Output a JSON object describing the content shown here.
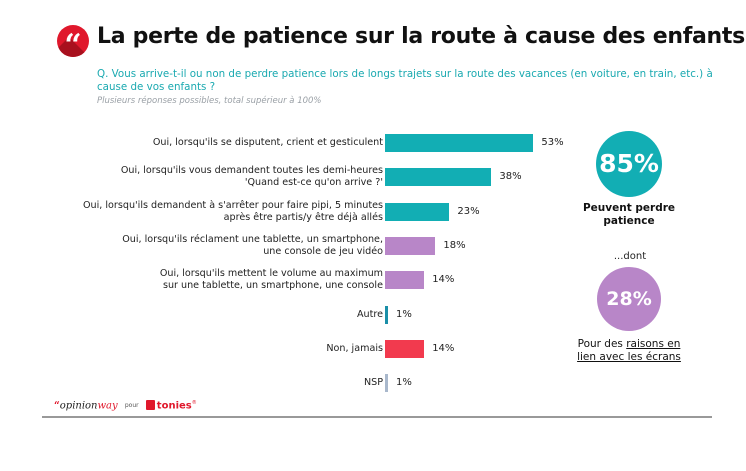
{
  "header": {
    "icon": "quote-icon",
    "quote_glyph": "“",
    "title": "La perte de patience sur la route à cause des enfants",
    "question": "Q. Vous arrive-t-il ou non de perdre patience lors de longs trajets sur la route des vacances (en voiture, en train, etc.) à cause de vos enfants ?",
    "note": "Plusieurs réponses possibles, total supérieur à 100%"
  },
  "chart_data": {
    "type": "bar",
    "orientation": "horizontal",
    "title": "La perte de patience sur la route à cause des enfants",
    "xlabel": "",
    "ylabel": "",
    "xlim": [
      0,
      100
    ],
    "grid": false,
    "unit": "%",
    "categories": [
      [
        "Oui, lorsqu'ils se disputent, crient et gesticulent"
      ],
      [
        "Oui, lorsqu'ils vous demandent toutes les demi-heures",
        "'Quand est-ce qu'on arrive ?'"
      ],
      [
        "Oui, lorsqu'ils demandent à s'arrêter pour faire pipi, 5 minutes",
        "après être partis/y être déjà allés"
      ],
      [
        "Oui, lorsqu'ils réclament une tablette, un smartphone,",
        "une console de jeu vidéo"
      ],
      [
        "Oui, lorsqu'ils mettent le volume au maximum",
        "sur une tablette, un smartphone, une console"
      ],
      [
        "Autre"
      ],
      [
        "Non, jamais"
      ],
      [
        "NSP"
      ]
    ],
    "values": [
      53,
      38,
      23,
      18,
      14,
      1,
      14,
      1
    ],
    "value_labels": [
      "53%",
      "38%",
      "23%",
      "18%",
      "14%",
      "1%",
      "14%",
      "1%"
    ],
    "colors": [
      "#12aeb4",
      "#12aeb4",
      "#12aeb4",
      "#b886c8",
      "#b886c8",
      "#1a8fa8",
      "#f23a4e",
      "#a9b8cc"
    ]
  },
  "summary": {
    "total_value": "85%",
    "total_label": "Peuvent perdre patience",
    "total_color": "#12aeb4",
    "dont_label": "...dont",
    "screens_value": "28%",
    "screens_color": "#b886c8",
    "screens_label_prefix": "Pour des ",
    "screens_label_underlined": "raisons en lien avec les écrans"
  },
  "footer": {
    "brand_quote": "“",
    "brand_part1": "opinion",
    "brand_part2": "way",
    "pour": "pour",
    "client": "tonies",
    "client_mark": "®"
  }
}
